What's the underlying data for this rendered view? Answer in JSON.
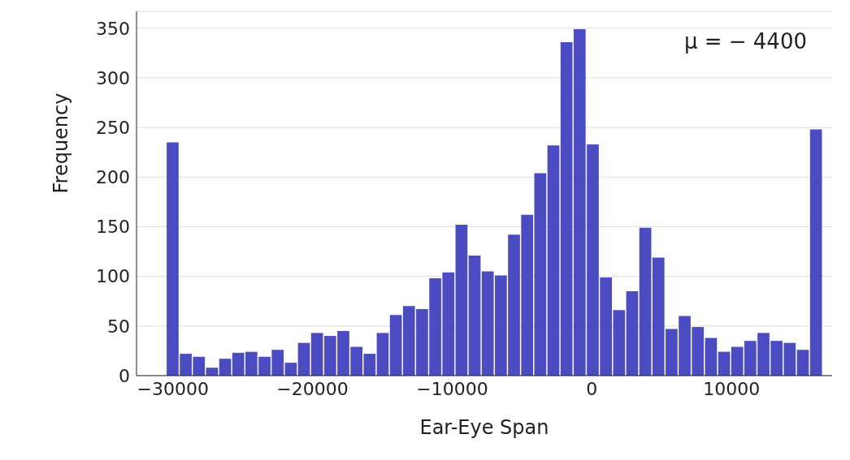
{
  "chart_data": {
    "type": "histogram",
    "xlabel": "Ear-Eye Span",
    "ylabel": "Frequency",
    "color": "#4b4bc2",
    "bins": [
      -30500,
      -29560,
      -28620,
      -27680,
      -26740,
      -25800,
      -24860,
      -23920,
      -22980,
      -22040,
      -21100,
      -20160,
      -19220,
      -18280,
      -17340,
      -16400,
      -15460,
      -14520,
      -13580,
      -12640,
      -11700,
      -10760,
      -9820,
      -8880,
      -7940,
      -7000,
      -6060,
      -5120,
      -4180,
      -3240,
      -2300,
      -1360,
      -420,
      520,
      1460,
      2400,
      3340,
      4280,
      5220,
      6160,
      7100,
      8040,
      8980,
      9920,
      10860,
      11800,
      12740,
      13680,
      14620,
      15560,
      16500
    ],
    "values": [
      235,
      22,
      19,
      8,
      17,
      23,
      24,
      19,
      26,
      13,
      33,
      43,
      40,
      45,
      29,
      22,
      43,
      61,
      70,
      67,
      98,
      104,
      152,
      121,
      105,
      101,
      142,
      162,
      204,
      232,
      336,
      349,
      233,
      99,
      66,
      85,
      149,
      119,
      47,
      60,
      49,
      38,
      24,
      29,
      35,
      43,
      35,
      33,
      26,
      248
    ],
    "xlim": [
      -32600,
      17200
    ],
    "ylim": [
      0,
      367
    ],
    "xticks": [
      -30000,
      -20000,
      -10000,
      0,
      10000
    ],
    "yticks": [
      0,
      50,
      100,
      150,
      200,
      250,
      300,
      350
    ],
    "grid": "y",
    "annotations": [
      "μ = − 4400"
    ]
  }
}
